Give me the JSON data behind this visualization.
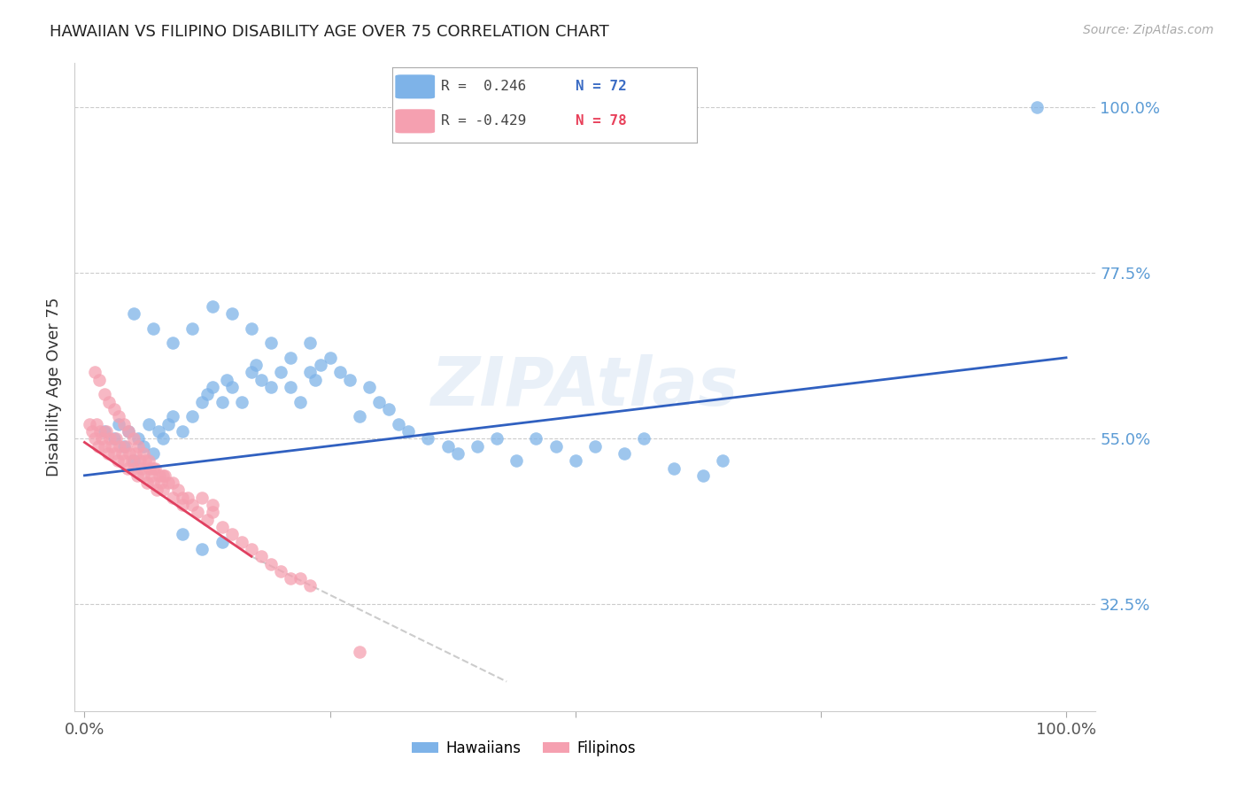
{
  "title": "HAWAIIAN VS FILIPINO DISABILITY AGE OVER 75 CORRELATION CHART",
  "source": "Source: ZipAtlas.com",
  "ylabel": "Disability Age Over 75",
  "hawaiian_color": "#7eb3e8",
  "filipino_color": "#f5a0b0",
  "trendline_hawaiian_color": "#3060c0",
  "trendline_filipino_color": "#e04060",
  "trendline_dashed_color": "#cccccc",
  "background_color": "#ffffff",
  "watermark": "ZIPAtlas",
  "ytick_vals": [
    0.325,
    0.55,
    0.775,
    1.0
  ],
  "ytick_labels": [
    "32.5%",
    "55.0%",
    "77.5%",
    "100.0%"
  ],
  "haw_trend": [
    0.0,
    0.5,
    1.0,
    0.66
  ],
  "fil_trend_solid": [
    0.0,
    0.545,
    0.17,
    0.39
  ],
  "fil_trend_dashed": [
    0.17,
    0.39,
    0.43,
    0.22
  ],
  "haw_scatter_x": [
    0.02,
    0.03,
    0.035,
    0.04,
    0.045,
    0.05,
    0.055,
    0.06,
    0.065,
    0.07,
    0.075,
    0.08,
    0.085,
    0.09,
    0.1,
    0.11,
    0.12,
    0.125,
    0.13,
    0.14,
    0.145,
    0.15,
    0.16,
    0.17,
    0.175,
    0.18,
    0.19,
    0.2,
    0.21,
    0.22,
    0.23,
    0.235,
    0.24,
    0.25,
    0.26,
    0.27,
    0.28,
    0.29,
    0.3,
    0.31,
    0.32,
    0.33,
    0.35,
    0.37,
    0.38,
    0.4,
    0.42,
    0.44,
    0.46,
    0.48,
    0.5,
    0.52,
    0.55,
    0.57,
    0.6,
    0.63,
    0.65,
    0.05,
    0.07,
    0.09,
    0.11,
    0.13,
    0.15,
    0.17,
    0.19,
    0.21,
    0.23,
    0.1,
    0.12,
    0.14,
    0.97
  ],
  "haw_scatter_y": [
    0.56,
    0.55,
    0.57,
    0.54,
    0.56,
    0.52,
    0.55,
    0.54,
    0.57,
    0.53,
    0.56,
    0.55,
    0.57,
    0.58,
    0.56,
    0.58,
    0.6,
    0.61,
    0.62,
    0.6,
    0.63,
    0.62,
    0.6,
    0.64,
    0.65,
    0.63,
    0.62,
    0.64,
    0.62,
    0.6,
    0.64,
    0.63,
    0.65,
    0.66,
    0.64,
    0.63,
    0.58,
    0.62,
    0.6,
    0.59,
    0.57,
    0.56,
    0.55,
    0.54,
    0.53,
    0.54,
    0.55,
    0.52,
    0.55,
    0.54,
    0.52,
    0.54,
    0.53,
    0.55,
    0.51,
    0.5,
    0.52,
    0.72,
    0.7,
    0.68,
    0.7,
    0.73,
    0.72,
    0.7,
    0.68,
    0.66,
    0.68,
    0.42,
    0.4,
    0.41,
    1.0
  ],
  "fil_scatter_x": [
    0.005,
    0.008,
    0.01,
    0.012,
    0.014,
    0.016,
    0.018,
    0.02,
    0.022,
    0.024,
    0.026,
    0.028,
    0.03,
    0.032,
    0.034,
    0.036,
    0.038,
    0.04,
    0.042,
    0.044,
    0.046,
    0.048,
    0.05,
    0.052,
    0.054,
    0.056,
    0.058,
    0.06,
    0.062,
    0.064,
    0.066,
    0.068,
    0.07,
    0.072,
    0.074,
    0.076,
    0.078,
    0.08,
    0.082,
    0.085,
    0.09,
    0.095,
    0.1,
    0.105,
    0.11,
    0.115,
    0.12,
    0.125,
    0.13,
    0.14,
    0.15,
    0.16,
    0.17,
    0.18,
    0.19,
    0.2,
    0.21,
    0.22,
    0.23,
    0.01,
    0.015,
    0.02,
    0.025,
    0.03,
    0.035,
    0.04,
    0.045,
    0.05,
    0.055,
    0.06,
    0.065,
    0.07,
    0.08,
    0.09,
    0.1,
    0.13,
    0.28
  ],
  "fil_scatter_y": [
    0.57,
    0.56,
    0.55,
    0.57,
    0.54,
    0.56,
    0.55,
    0.54,
    0.56,
    0.53,
    0.55,
    0.54,
    0.53,
    0.55,
    0.52,
    0.54,
    0.53,
    0.52,
    0.54,
    0.51,
    0.53,
    0.52,
    0.51,
    0.53,
    0.5,
    0.52,
    0.51,
    0.5,
    0.52,
    0.49,
    0.51,
    0.5,
    0.49,
    0.51,
    0.48,
    0.5,
    0.49,
    0.48,
    0.5,
    0.49,
    0.47,
    0.48,
    0.46,
    0.47,
    0.46,
    0.45,
    0.47,
    0.44,
    0.45,
    0.43,
    0.42,
    0.41,
    0.4,
    0.39,
    0.38,
    0.37,
    0.36,
    0.36,
    0.35,
    0.64,
    0.63,
    0.61,
    0.6,
    0.59,
    0.58,
    0.57,
    0.56,
    0.55,
    0.54,
    0.53,
    0.52,
    0.51,
    0.5,
    0.49,
    0.47,
    0.46,
    0.26
  ]
}
